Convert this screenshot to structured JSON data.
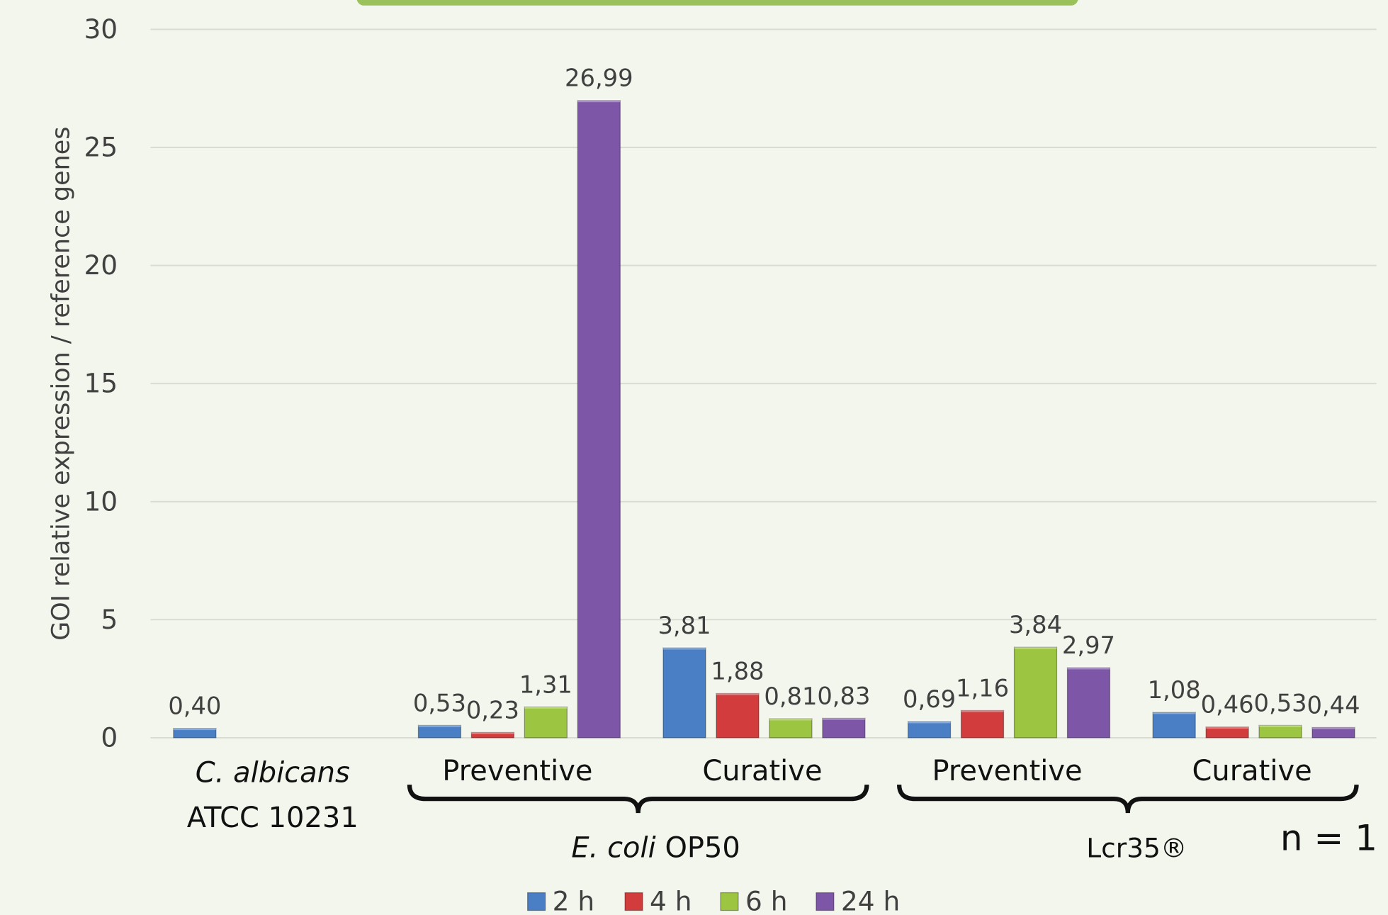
{
  "chart_data": {
    "type": "bar",
    "y_axis_label": "GOI relative expression / reference genes",
    "ylim": [
      0,
      30
    ],
    "yticks": [
      0,
      5,
      10,
      15,
      20,
      25,
      30
    ],
    "grid": true,
    "categories": [
      [
        "C. albicans",
        "ATCC 10231"
      ],
      "Preventive",
      "Curative",
      "Preventive",
      "Curative"
    ],
    "groups": [
      [
        "E. coli",
        " OP50"
      ],
      "Lcr35®"
    ],
    "annotation": "n = 1",
    "legend_position": "bottom",
    "series": [
      {
        "name": "2 h",
        "color": "#4a7fc6",
        "values": [
          0.4,
          0.53,
          3.81,
          0.69,
          1.08
        ],
        "value_labels": [
          "0,40",
          "0,53",
          "3,81",
          "0,69",
          "1,08"
        ]
      },
      {
        "name": "4 h",
        "color": "#d23c3c",
        "values": [
          null,
          0.23,
          1.88,
          1.16,
          0.46
        ],
        "value_labels": [
          null,
          "0,23",
          "1,88",
          "1,16",
          "0,46"
        ]
      },
      {
        "name": "6 h",
        "color": "#9cc641",
        "values": [
          null,
          1.31,
          0.81,
          3.84,
          0.53
        ],
        "value_labels": [
          null,
          "1,31",
          "0,81",
          "3,84",
          "0,53"
        ]
      },
      {
        "name": "24 h",
        "color": "#7d56a8",
        "values": [
          null,
          26.99,
          0.83,
          2.97,
          0.44
        ],
        "value_labels": [
          null,
          "26,99",
          "0,83",
          "2,97",
          "0,44"
        ]
      }
    ]
  }
}
